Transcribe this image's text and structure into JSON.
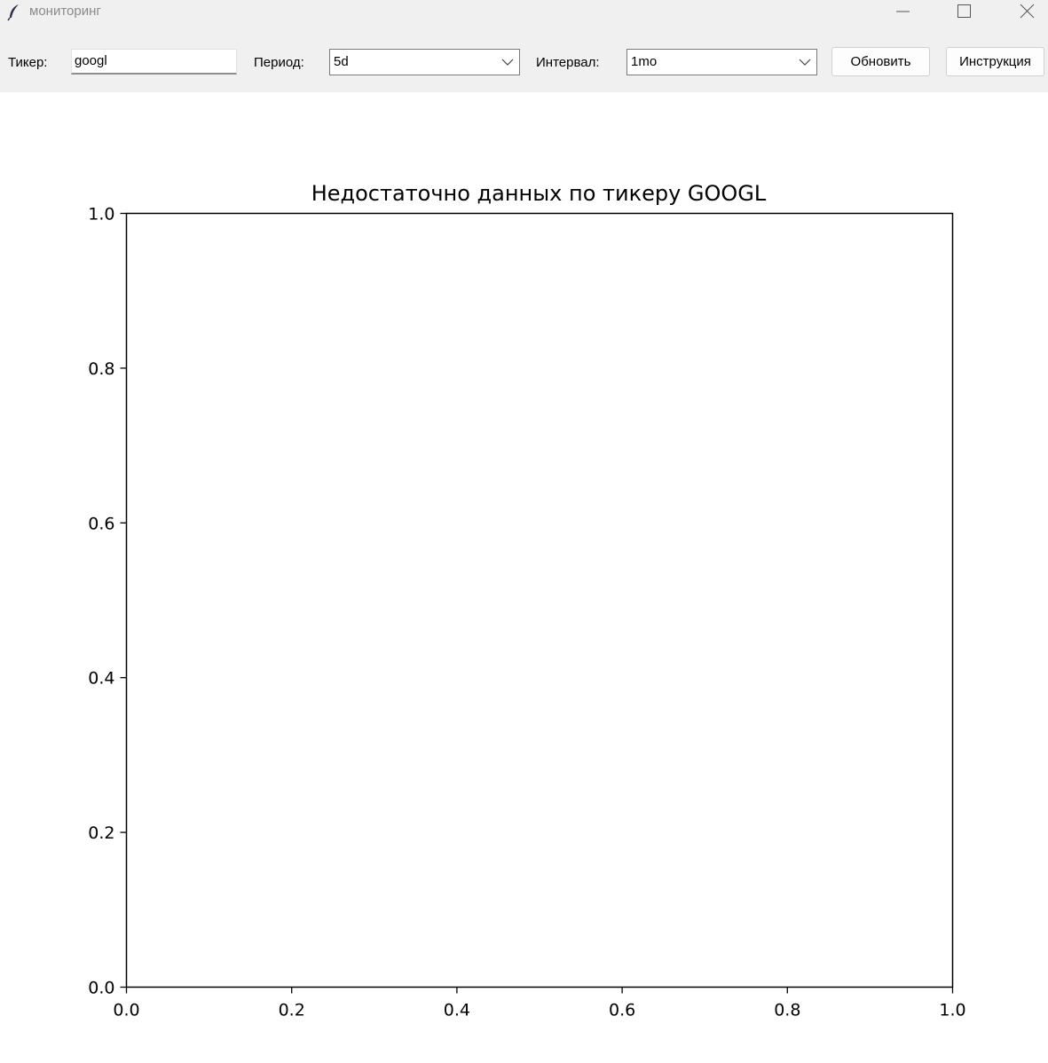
{
  "window": {
    "title": "мониторинг",
    "icon": "feather-icon",
    "controls": [
      "minimize-icon",
      "maximize-icon",
      "close-icon"
    ]
  },
  "toolbar": {
    "ticker_label": "Тикер:",
    "ticker_value": "googl",
    "period_label": "Период:",
    "period_value": "5d",
    "interval_label": "Интервал:",
    "interval_value": "1mo",
    "refresh_label": "Обновить",
    "help_label": "Инструкция"
  },
  "chart_data": {
    "type": "line",
    "title": "Недостаточно данных по тикеру GOOGL",
    "xlabel": "",
    "ylabel": "",
    "xlim": [
      0.0,
      1.0
    ],
    "ylim": [
      0.0,
      1.0
    ],
    "x_ticks": [
      "0.0",
      "0.2",
      "0.4",
      "0.6",
      "0.8",
      "1.0"
    ],
    "y_ticks": [
      "0.0",
      "0.2",
      "0.4",
      "0.6",
      "0.8",
      "1.0"
    ],
    "series": [],
    "grid": false
  }
}
